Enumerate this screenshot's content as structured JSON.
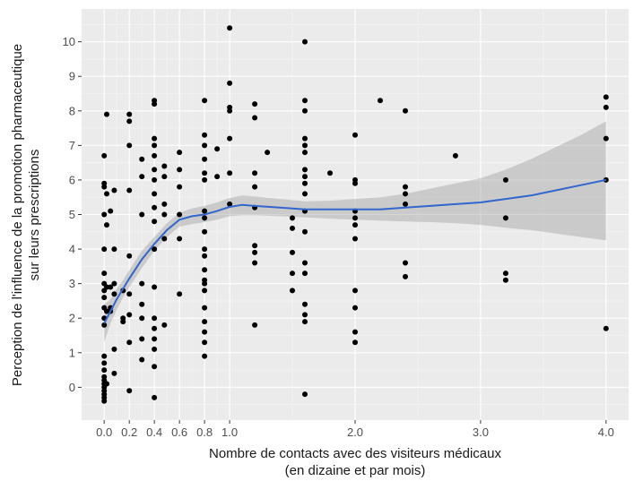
{
  "chart_data": {
    "type": "scatter",
    "xlabel": [
      "Nombre de contacts avec des visiteurs médicaux",
      "(en dizaine et par mois)"
    ],
    "ylabel": [
      "Perception de l'influence de la promotion pharmaceutique",
      "sur leurs prescriptions"
    ],
    "xlim": [
      -0.18,
      4.18
    ],
    "ylim": [
      -0.95,
      10.95
    ],
    "x_ticks": [
      0.0,
      0.2,
      0.4,
      0.6,
      0.8,
      1.0,
      2.0,
      3.0,
      4.0
    ],
    "x_tick_labels": [
      "0.0",
      "0.2",
      "0.4",
      "0.6",
      "0.8",
      "1.0",
      "2.0",
      "3.0",
      "4.0"
    ],
    "y_ticks": [
      0,
      1,
      2,
      3,
      4,
      5,
      6,
      7,
      8,
      9,
      10
    ],
    "y_tick_labels": [
      "0",
      "1",
      "2",
      "3",
      "4",
      "5",
      "6",
      "7",
      "8",
      "9",
      "10"
    ],
    "grid": true,
    "background": "#ebebeb",
    "point_color": "#000000",
    "smooth_color": "#3366cc",
    "ribbon_color": "#999999",
    "points": [
      [
        0.0,
        -0.4
      ],
      [
        0.0,
        -0.3
      ],
      [
        0.0,
        -0.2
      ],
      [
        0.0,
        -0.1
      ],
      [
        0.0,
        0.0
      ],
      [
        0.0,
        0.1
      ],
      [
        0.0,
        0.2
      ],
      [
        0.0,
        0.3
      ],
      [
        0.0,
        0.5
      ],
      [
        0.0,
        0.7
      ],
      [
        0.0,
        0.9
      ],
      [
        0.0,
        1.8
      ],
      [
        0.0,
        2.0
      ],
      [
        0.0,
        2.3
      ],
      [
        0.0,
        2.6
      ],
      [
        0.0,
        2.8
      ],
      [
        0.0,
        3.0
      ],
      [
        0.0,
        3.3
      ],
      [
        0.0,
        4.0
      ],
      [
        0.0,
        5.0
      ],
      [
        0.0,
        5.8
      ],
      [
        0.0,
        5.9
      ],
      [
        0.0,
        6.7
      ],
      [
        0.02,
        0.1
      ],
      [
        0.02,
        2.2
      ],
      [
        0.02,
        2.9
      ],
      [
        0.02,
        4.7
      ],
      [
        0.02,
        5.6
      ],
      [
        0.02,
        7.9
      ],
      [
        0.05,
        2.2
      ],
      [
        0.05,
        2.3
      ],
      [
        0.05,
        2.9
      ],
      [
        0.05,
        5.1
      ],
      [
        0.08,
        0.4
      ],
      [
        0.08,
        1.1
      ],
      [
        0.08,
        2.7
      ],
      [
        0.08,
        3.0
      ],
      [
        0.08,
        4.0
      ],
      [
        0.08,
        5.7
      ],
      [
        0.15,
        1.9
      ],
      [
        0.15,
        2.8
      ],
      [
        0.15,
        2.0
      ],
      [
        0.2,
        -0.1
      ],
      [
        0.2,
        1.3
      ],
      [
        0.2,
        2.1
      ],
      [
        0.2,
        2.7
      ],
      [
        0.2,
        3.8
      ],
      [
        0.2,
        5.7
      ],
      [
        0.2,
        7.0
      ],
      [
        0.2,
        7.7
      ],
      [
        0.2,
        7.9
      ],
      [
        0.3,
        0.8
      ],
      [
        0.3,
        1.4
      ],
      [
        0.3,
        2.0
      ],
      [
        0.3,
        2.4
      ],
      [
        0.3,
        3.0
      ],
      [
        0.3,
        5.0
      ],
      [
        0.3,
        6.1
      ],
      [
        0.3,
        6.6
      ],
      [
        0.4,
        -0.3
      ],
      [
        0.4,
        0.6
      ],
      [
        0.4,
        1.1
      ],
      [
        0.4,
        1.4
      ],
      [
        0.4,
        1.7
      ],
      [
        0.4,
        2.0
      ],
      [
        0.4,
        2.9
      ],
      [
        0.4,
        4.0
      ],
      [
        0.4,
        4.8
      ],
      [
        0.4,
        5.2
      ],
      [
        0.4,
        5.6
      ],
      [
        0.4,
        6.0
      ],
      [
        0.4,
        6.3
      ],
      [
        0.4,
        6.7
      ],
      [
        0.4,
        7.0
      ],
      [
        0.4,
        7.2
      ],
      [
        0.4,
        8.2
      ],
      [
        0.4,
        8.3
      ],
      [
        0.48,
        1.8
      ],
      [
        0.48,
        4.3
      ],
      [
        0.48,
        5.0
      ],
      [
        0.48,
        5.3
      ],
      [
        0.48,
        6.1
      ],
      [
        0.48,
        6.4
      ],
      [
        0.6,
        2.7
      ],
      [
        0.6,
        4.3
      ],
      [
        0.6,
        5.0
      ],
      [
        0.6,
        5.8
      ],
      [
        0.6,
        6.3
      ],
      [
        0.6,
        6.8
      ],
      [
        0.8,
        0.9
      ],
      [
        0.8,
        1.3
      ],
      [
        0.8,
        1.6
      ],
      [
        0.8,
        1.9
      ],
      [
        0.8,
        2.3
      ],
      [
        0.8,
        2.8
      ],
      [
        0.8,
        3.0
      ],
      [
        0.8,
        3.1
      ],
      [
        0.8,
        3.4
      ],
      [
        0.8,
        3.8
      ],
      [
        0.8,
        4.0
      ],
      [
        0.8,
        4.5
      ],
      [
        0.8,
        4.9
      ],
      [
        0.8,
        5.1
      ],
      [
        0.8,
        6.0
      ],
      [
        0.8,
        6.2
      ],
      [
        0.8,
        6.6
      ],
      [
        0.8,
        7.0
      ],
      [
        0.8,
        7.3
      ],
      [
        0.8,
        8.3
      ],
      [
        0.9,
        6.1
      ],
      [
        0.9,
        6.9
      ],
      [
        1.0,
        5.3
      ],
      [
        1.0,
        6.2
      ],
      [
        1.0,
        7.2
      ],
      [
        1.0,
        8.0
      ],
      [
        1.0,
        8.1
      ],
      [
        1.0,
        8.8
      ],
      [
        1.0,
        10.4
      ],
      [
        1.2,
        1.8
      ],
      [
        1.2,
        3.6
      ],
      [
        1.2,
        3.9
      ],
      [
        1.2,
        4.1
      ],
      [
        1.2,
        5.2
      ],
      [
        1.2,
        5.8
      ],
      [
        1.2,
        6.2
      ],
      [
        1.2,
        7.8
      ],
      [
        1.2,
        8.2
      ],
      [
        1.3,
        6.8
      ],
      [
        1.5,
        2.8
      ],
      [
        1.5,
        3.3
      ],
      [
        1.5,
        3.9
      ],
      [
        1.5,
        4.6
      ],
      [
        1.5,
        4.9
      ],
      [
        1.6,
        -0.2
      ],
      [
        1.6,
        1.9
      ],
      [
        1.6,
        2.1
      ],
      [
        1.6,
        2.4
      ],
      [
        1.6,
        3.3
      ],
      [
        1.6,
        3.6
      ],
      [
        1.6,
        4.5
      ],
      [
        1.6,
        5.1
      ],
      [
        1.6,
        5.6
      ],
      [
        1.6,
        5.9
      ],
      [
        1.6,
        6.1
      ],
      [
        1.6,
        6.3
      ],
      [
        1.6,
        6.8
      ],
      [
        1.6,
        7.0
      ],
      [
        1.6,
        7.2
      ],
      [
        1.6,
        8.0
      ],
      [
        1.6,
        8.3
      ],
      [
        1.6,
        10.0
      ],
      [
        1.8,
        6.2
      ],
      [
        2.0,
        1.3
      ],
      [
        2.0,
        1.6
      ],
      [
        2.0,
        2.3
      ],
      [
        2.0,
        2.8
      ],
      [
        2.0,
        4.3
      ],
      [
        2.0,
        4.7
      ],
      [
        2.0,
        4.9
      ],
      [
        2.0,
        5.1
      ],
      [
        2.0,
        5.9
      ],
      [
        2.0,
        6.0
      ],
      [
        2.0,
        7.3
      ],
      [
        2.2,
        8.3
      ],
      [
        2.4,
        3.2
      ],
      [
        2.4,
        3.6
      ],
      [
        2.4,
        5.3
      ],
      [
        2.4,
        5.6
      ],
      [
        2.4,
        5.8
      ],
      [
        2.4,
        8.0
      ],
      [
        2.8,
        6.7
      ],
      [
        3.2,
        3.1
      ],
      [
        3.2,
        3.3
      ],
      [
        3.2,
        4.9
      ],
      [
        3.2,
        6.0
      ],
      [
        4.0,
        1.7
      ],
      [
        4.0,
        6.0
      ],
      [
        4.0,
        7.2
      ],
      [
        4.0,
        8.1
      ],
      [
        4.0,
        8.4
      ]
    ],
    "smooth_line": {
      "x": [
        0.0,
        0.05,
        0.1,
        0.15,
        0.2,
        0.3,
        0.4,
        0.5,
        0.6,
        0.7,
        0.8,
        0.9,
        1.0,
        1.1,
        1.2,
        1.4,
        1.6,
        1.8,
        2.0,
        2.2,
        2.4,
        2.6,
        2.8,
        3.0,
        3.2,
        3.4,
        3.6,
        3.8,
        4.0
      ],
      "y": [
        1.85,
        2.2,
        2.55,
        2.85,
        3.15,
        3.7,
        4.15,
        4.55,
        4.85,
        4.95,
        5.0,
        5.1,
        5.22,
        5.28,
        5.25,
        5.2,
        5.15,
        5.15,
        5.15,
        5.15,
        5.2,
        5.25,
        5.3,
        5.35,
        5.45,
        5.55,
        5.7,
        5.85,
        6.0
      ],
      "lower": [
        1.3,
        1.85,
        2.25,
        2.6,
        2.9,
        3.45,
        3.95,
        4.35,
        4.65,
        4.72,
        4.78,
        4.85,
        4.95,
        4.98,
        4.98,
        4.95,
        4.92,
        4.88,
        4.85,
        4.82,
        4.8,
        4.78,
        4.75,
        4.7,
        4.62,
        4.55,
        4.45,
        4.35,
        4.25
      ],
      "upper": [
        2.4,
        2.55,
        2.85,
        3.1,
        3.4,
        3.95,
        4.35,
        4.75,
        5.05,
        5.18,
        5.25,
        5.35,
        5.48,
        5.55,
        5.52,
        5.45,
        5.38,
        5.4,
        5.45,
        5.5,
        5.6,
        5.75,
        5.9,
        6.05,
        6.3,
        6.6,
        6.95,
        7.3,
        7.7
      ]
    }
  }
}
